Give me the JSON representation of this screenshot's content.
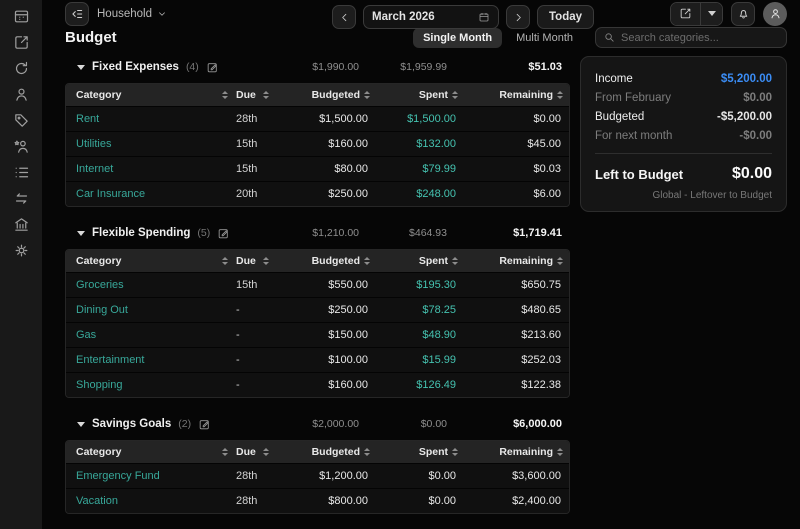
{
  "colors": {
    "teal": "#38a89a",
    "spent_teal": "#45c2b0",
    "income_blue": "#3b8df5"
  },
  "topbar": {
    "workspace_label": "Household",
    "month_label": "March 2026",
    "today_label": "Today"
  },
  "page": {
    "title": "Budget"
  },
  "view_tabs": {
    "single": "Single Month",
    "multi": "Multi Month",
    "selected": "Single Month"
  },
  "search": {
    "placeholder": "Search categories..."
  },
  "columns": {
    "category": "Category",
    "due": "Due",
    "budgeted": "Budgeted",
    "spent": "Spent",
    "remaining": "Remaining"
  },
  "sections": [
    {
      "title": "Fixed Expenses",
      "count": "(4)",
      "summary": {
        "budgeted": "$1,990.00",
        "spent": "$1,959.99",
        "remaining": "$51.03"
      },
      "rows": [
        {
          "category": "Rent",
          "due": "28th",
          "budgeted": "$1,500.00",
          "spent": "$1,500.00",
          "remaining": "$0.00"
        },
        {
          "category": "Utilities",
          "due": "15th",
          "budgeted": "$160.00",
          "spent": "$132.00",
          "remaining": "$45.00"
        },
        {
          "category": "Internet",
          "due": "15th",
          "budgeted": "$80.00",
          "spent": "$79.99",
          "remaining": "$0.03"
        },
        {
          "category": "Car Insurance",
          "due": "20th",
          "budgeted": "$250.00",
          "spent": "$248.00",
          "remaining": "$6.00"
        }
      ]
    },
    {
      "title": "Flexible Spending",
      "count": "(5)",
      "summary": {
        "budgeted": "$1,210.00",
        "spent": "$464.93",
        "remaining": "$1,719.41"
      },
      "rows": [
        {
          "category": "Groceries",
          "due": "15th",
          "budgeted": "$550.00",
          "spent": "$195.30",
          "remaining": "$650.75"
        },
        {
          "category": "Dining Out",
          "due": "-",
          "budgeted": "$250.00",
          "spent": "$78.25",
          "remaining": "$480.65"
        },
        {
          "category": "Gas",
          "due": "-",
          "budgeted": "$150.00",
          "spent": "$48.90",
          "remaining": "$213.60"
        },
        {
          "category": "Entertainment",
          "due": "-",
          "budgeted": "$100.00",
          "spent": "$15.99",
          "remaining": "$252.03"
        },
        {
          "category": "Shopping",
          "due": "-",
          "budgeted": "$160.00",
          "spent": "$126.49",
          "remaining": "$122.38"
        }
      ]
    },
    {
      "title": "Savings Goals",
      "count": "(2)",
      "summary": {
        "budgeted": "$2,000.00",
        "spent": "$0.00",
        "remaining": "$6,000.00"
      },
      "rows": [
        {
          "category": "Emergency Fund",
          "due": "28th",
          "budgeted": "$1,200.00",
          "spent": "$0.00",
          "remaining": "$3,600.00"
        },
        {
          "category": "Vacation",
          "due": "28th",
          "budgeted": "$800.00",
          "spent": "$0.00",
          "remaining": "$2,400.00"
        }
      ]
    }
  ],
  "summary_panel": {
    "income_label": "Income",
    "income_value": "$5,200.00",
    "from_label": "From February",
    "from_value": "$0.00",
    "budgeted_label": "Budgeted",
    "budgeted_value": "-$5,200.00",
    "next_label": "For next month",
    "next_value": "-$0.00",
    "left_label": "Left to Budget",
    "left_value": "$0.00",
    "footnote": "Global - Leftover to Budget"
  }
}
